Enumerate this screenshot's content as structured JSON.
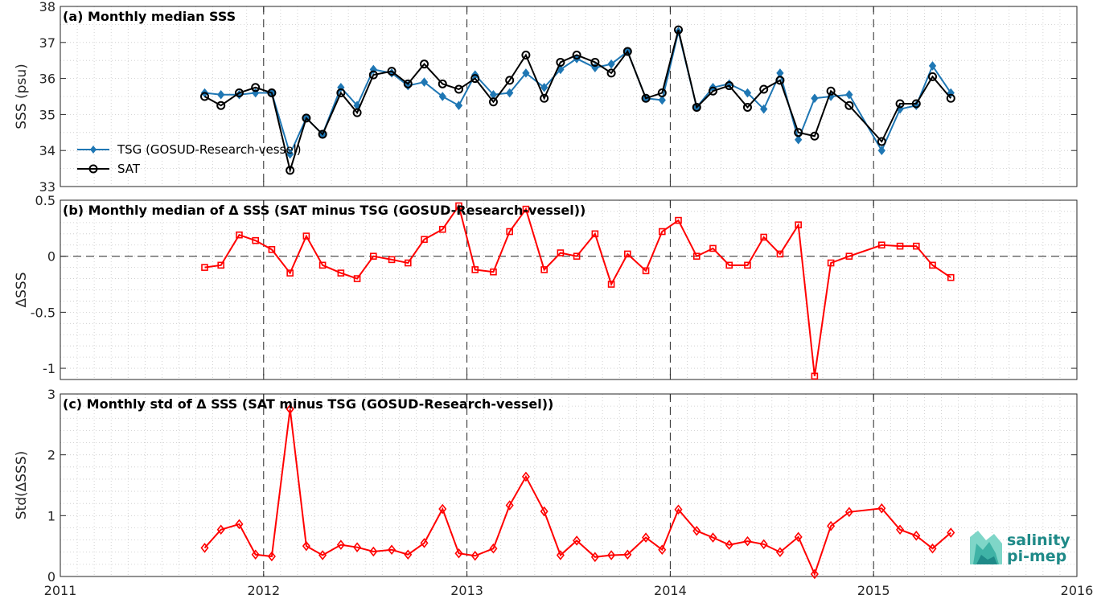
{
  "chart_data": [
    {
      "type": "line",
      "title": "(a) Monthly median SSS",
      "ylabel": "SSS (psu)",
      "xlim": [
        2011,
        2016
      ],
      "ylim": [
        33,
        38
      ],
      "yticks": [
        33,
        34,
        35,
        36,
        37,
        38
      ],
      "grid": true,
      "legend_position": "bottom-left",
      "series": [
        {
          "name": "TSG (GOSUD-Research-vessel)",
          "color": "#1f77b4",
          "marker": "filled-diamond",
          "x": [
            2011.71,
            2011.79,
            2011.88,
            2011.96,
            2012.04,
            2012.13,
            2012.21,
            2012.29,
            2012.38,
            2012.46,
            2012.54,
            2012.63,
            2012.71,
            2012.79,
            2012.88,
            2012.96,
            2013.04,
            2013.13,
            2013.21,
            2013.29,
            2013.38,
            2013.46,
            2013.54,
            2013.63,
            2013.71,
            2013.79,
            2013.88,
            2013.96,
            2014.04,
            2014.13,
            2014.21,
            2014.29,
            2014.38,
            2014.46,
            2014.54,
            2014.63,
            2014.71,
            2014.79,
            2014.88,
            2015.04,
            2015.13,
            2015.21,
            2015.29,
            2015.38
          ],
          "y": [
            35.6,
            35.55,
            35.55,
            35.6,
            35.6,
            33.9,
            34.9,
            34.45,
            35.75,
            35.25,
            36.25,
            36.15,
            35.8,
            35.9,
            35.5,
            35.25,
            36.1,
            35.55,
            35.6,
            36.15,
            35.75,
            36.25,
            36.55,
            36.3,
            36.4,
            36.75,
            35.45,
            35.4,
            37.3,
            35.2,
            35.75,
            35.85,
            35.6,
            35.15,
            36.15,
            34.3,
            35.45,
            35.5,
            35.55,
            34.0,
            35.15,
            35.25,
            36.35,
            35.6
          ]
        },
        {
          "name": "SAT",
          "color": "#000000",
          "marker": "open-circle",
          "x": [
            2011.71,
            2011.79,
            2011.88,
            2011.96,
            2012.04,
            2012.13,
            2012.21,
            2012.29,
            2012.38,
            2012.46,
            2012.54,
            2012.63,
            2012.71,
            2012.79,
            2012.88,
            2012.96,
            2013.04,
            2013.13,
            2013.21,
            2013.29,
            2013.38,
            2013.46,
            2013.54,
            2013.63,
            2013.71,
            2013.79,
            2013.88,
            2013.96,
            2014.04,
            2014.13,
            2014.21,
            2014.29,
            2014.38,
            2014.46,
            2014.54,
            2014.63,
            2014.71,
            2014.79,
            2014.88,
            2015.04,
            2015.13,
            2015.21,
            2015.29,
            2015.38
          ],
          "y": [
            35.5,
            35.25,
            35.6,
            35.75,
            35.6,
            33.45,
            34.9,
            34.45,
            35.6,
            35.05,
            36.1,
            36.2,
            35.85,
            36.4,
            35.85,
            35.7,
            36.0,
            35.35,
            35.95,
            36.65,
            35.45,
            36.45,
            36.65,
            36.45,
            36.15,
            36.75,
            35.45,
            35.6,
            37.35,
            35.2,
            35.65,
            35.8,
            35.2,
            35.7,
            35.95,
            34.5,
            34.4,
            35.65,
            35.25,
            34.25,
            35.3,
            35.3,
            36.05,
            35.45
          ]
        }
      ]
    },
    {
      "type": "line",
      "title": "(b) Monthly median of Δ SSS (SAT minus TSG (GOSUD-Research-vessel))",
      "ylabel": "ΔSSS",
      "xlim": [
        2011,
        2016
      ],
      "ylim": [
        -1.1,
        0.5
      ],
      "yticks": [
        -1,
        -0.5,
        0,
        0.5
      ],
      "grid": true,
      "series": [
        {
          "name": "",
          "color": "#ff0000",
          "marker": "open-square",
          "x": [
            2011.71,
            2011.79,
            2011.88,
            2011.96,
            2012.04,
            2012.13,
            2012.21,
            2012.29,
            2012.38,
            2012.46,
            2012.54,
            2012.63,
            2012.71,
            2012.79,
            2012.88,
            2012.96,
            2013.04,
            2013.13,
            2013.21,
            2013.29,
            2013.38,
            2013.46,
            2013.54,
            2013.63,
            2013.71,
            2013.79,
            2013.88,
            2013.96,
            2014.04,
            2014.13,
            2014.21,
            2014.29,
            2014.38,
            2014.46,
            2014.54,
            2014.63,
            2014.71,
            2014.79,
            2014.88,
            2015.04,
            2015.13,
            2015.21,
            2015.29,
            2015.38
          ],
          "y": [
            -0.1,
            -0.08,
            0.19,
            0.14,
            0.06,
            -0.15,
            0.18,
            -0.08,
            -0.15,
            -0.2,
            0.0,
            -0.03,
            -0.06,
            0.15,
            0.24,
            0.45,
            -0.12,
            -0.14,
            0.22,
            0.42,
            -0.12,
            0.03,
            0.0,
            0.2,
            -0.25,
            0.02,
            -0.13,
            0.22,
            0.32,
            0.0,
            0.07,
            -0.08,
            -0.08,
            0.17,
            0.02,
            0.28,
            -1.07,
            -0.06,
            0.0,
            0.1,
            0.09,
            0.09,
            -0.08,
            -0.19
          ]
        }
      ]
    },
    {
      "type": "line",
      "title": "(c) Monthly std of Δ SSS (SAT minus TSG (GOSUD-Research-vessel))",
      "ylabel": "Std(ΔSSS)",
      "xlabel": "",
      "xlim": [
        2011,
        2016
      ],
      "xticks": [
        "2011",
        "2012",
        "2013",
        "2014",
        "2015",
        "2016"
      ],
      "ylim": [
        0,
        3
      ],
      "yticks": [
        0,
        1,
        2,
        3
      ],
      "grid": true,
      "series": [
        {
          "name": "",
          "color": "#ff0000",
          "marker": "open-diamond",
          "x": [
            2011.71,
            2011.79,
            2011.88,
            2011.96,
            2012.04,
            2012.13,
            2012.21,
            2012.29,
            2012.38,
            2012.46,
            2012.54,
            2012.63,
            2012.71,
            2012.79,
            2012.88,
            2012.96,
            2013.04,
            2013.13,
            2013.21,
            2013.29,
            2013.38,
            2013.46,
            2013.54,
            2013.63,
            2013.71,
            2013.79,
            2013.88,
            2013.96,
            2014.04,
            2014.13,
            2014.21,
            2014.29,
            2014.38,
            2014.46,
            2014.54,
            2014.63,
            2014.71,
            2014.79,
            2014.88,
            2015.04,
            2015.13,
            2015.21,
            2015.29,
            2015.38
          ],
          "y": [
            0.47,
            0.77,
            0.86,
            0.36,
            0.33,
            2.75,
            0.5,
            0.35,
            0.52,
            0.48,
            0.41,
            0.44,
            0.36,
            0.55,
            1.11,
            0.38,
            0.34,
            0.46,
            1.17,
            1.64,
            1.07,
            0.35,
            0.59,
            0.32,
            0.35,
            0.36,
            0.64,
            0.44,
            1.1,
            0.75,
            0.64,
            0.52,
            0.58,
            0.53,
            0.4,
            0.65,
            0.04,
            0.83,
            1.06,
            1.12,
            0.77,
            0.67,
            0.46,
            0.72
          ]
        }
      ]
    }
  ],
  "logo": {
    "line1": "salinity",
    "line2": "pi-mep",
    "color": "#1f8a88"
  }
}
